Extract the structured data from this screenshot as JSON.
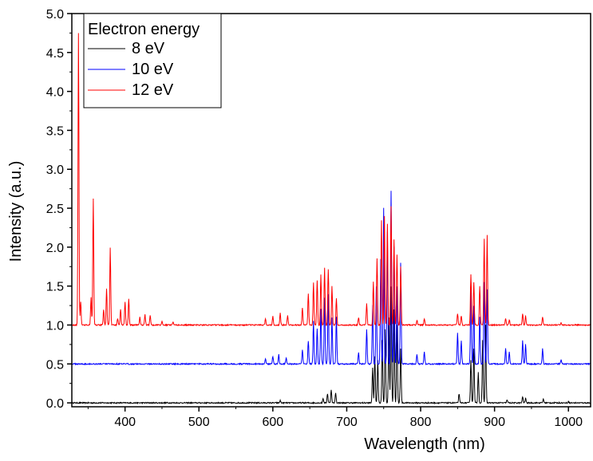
{
  "chart_data": {
    "type": "line",
    "title": "",
    "xlabel": "Wavelength (nm)",
    "ylabel": "Intensity (a.u.)",
    "xlim": [
      328,
      1030
    ],
    "ylim": [
      -0.05,
      5.0
    ],
    "x_ticks": [
      400,
      500,
      600,
      700,
      800,
      900,
      1000
    ],
    "x_tick_labels": [
      "400",
      "500",
      "600",
      "700",
      "800",
      "900",
      "1000"
    ],
    "y_ticks": [
      0.0,
      0.5,
      1.0,
      1.5,
      2.0,
      2.5,
      3.0,
      3.5,
      4.0,
      4.5,
      5.0
    ],
    "y_tick_labels": [
      "0.0",
      "0.5",
      "1.0",
      "1.5",
      "2.0",
      "2.5",
      "3.0",
      "3.5",
      "4.0",
      "4.5",
      "5.0"
    ],
    "grid": false,
    "legend": {
      "title": "Electron energy",
      "placement": "top-left"
    },
    "series": [
      {
        "name": "8 eV",
        "color": "#000000",
        "offset": 0.0,
        "peaks": [
          [
            610,
            0.03
          ],
          [
            668,
            0.06
          ],
          [
            674,
            0.12
          ],
          [
            679,
            0.17
          ],
          [
            685,
            0.13
          ],
          [
            735,
            0.45
          ],
          [
            738,
            0.6
          ],
          [
            742,
            0.55
          ],
          [
            748,
            0.8
          ],
          [
            752,
            0.95
          ],
          [
            757,
            1.1
          ],
          [
            760,
            1.5
          ],
          [
            764,
            1.2
          ],
          [
            768,
            1.0
          ],
          [
            773,
            0.7
          ],
          [
            852,
            0.12
          ],
          [
            868,
            0.55
          ],
          [
            872,
            0.7
          ],
          [
            878,
            0.4
          ],
          [
            884,
            0.8
          ],
          [
            888,
            1.0
          ],
          [
            917,
            0.04
          ],
          [
            938,
            0.08
          ],
          [
            942,
            0.06
          ],
          [
            966,
            0.05
          ],
          [
            1000,
            0.02
          ]
        ]
      },
      {
        "name": "10 eV",
        "color": "#0000ff",
        "offset": 0.5,
        "peaks": [
          [
            590,
            0.06
          ],
          [
            600,
            0.1
          ],
          [
            608,
            0.12
          ],
          [
            618,
            0.08
          ],
          [
            640,
            0.18
          ],
          [
            648,
            0.3
          ],
          [
            655,
            0.55
          ],
          [
            660,
            0.45
          ],
          [
            665,
            0.7
          ],
          [
            670,
            0.85
          ],
          [
            675,
            0.9
          ],
          [
            680,
            0.6
          ],
          [
            686,
            0.6
          ],
          [
            716,
            0.15
          ],
          [
            727,
            0.45
          ],
          [
            735,
            0.75
          ],
          [
            740,
            1.0
          ],
          [
            746,
            1.35
          ],
          [
            750,
            2.0
          ],
          [
            755,
            1.7
          ],
          [
            760,
            2.22
          ],
          [
            764,
            1.5
          ],
          [
            768,
            1.0
          ],
          [
            773,
            1.3
          ],
          [
            795,
            0.12
          ],
          [
            805,
            0.15
          ],
          [
            850,
            0.4
          ],
          [
            855,
            0.3
          ],
          [
            868,
            1.0
          ],
          [
            872,
            0.75
          ],
          [
            880,
            0.6
          ],
          [
            886,
            1.05
          ],
          [
            890,
            0.95
          ],
          [
            915,
            0.2
          ],
          [
            920,
            0.15
          ],
          [
            938,
            0.3
          ],
          [
            942,
            0.25
          ],
          [
            965,
            0.2
          ],
          [
            990,
            0.05
          ]
        ]
      },
      {
        "name": "12 eV",
        "color": "#ff0000",
        "offset": 1.0,
        "peaks": [
          [
            337,
            3.75
          ],
          [
            340,
            0.3
          ],
          [
            354,
            0.35
          ],
          [
            357,
            1.62
          ],
          [
            371,
            0.2
          ],
          [
            375,
            0.47
          ],
          [
            380,
            1.0
          ],
          [
            390,
            0.08
          ],
          [
            394,
            0.2
          ],
          [
            400,
            0.3
          ],
          [
            405,
            0.33
          ],
          [
            420,
            0.1
          ],
          [
            427,
            0.13
          ],
          [
            434,
            0.13
          ],
          [
            450,
            0.05
          ],
          [
            465,
            0.04
          ],
          [
            590,
            0.08
          ],
          [
            600,
            0.12
          ],
          [
            610,
            0.15
          ],
          [
            620,
            0.12
          ],
          [
            640,
            0.22
          ],
          [
            648,
            0.4
          ],
          [
            655,
            0.55
          ],
          [
            660,
            0.58
          ],
          [
            665,
            0.65
          ],
          [
            670,
            0.73
          ],
          [
            675,
            0.72
          ],
          [
            680,
            0.5
          ],
          [
            686,
            0.35
          ],
          [
            716,
            0.1
          ],
          [
            727,
            0.28
          ],
          [
            736,
            0.55
          ],
          [
            741,
            0.85
          ],
          [
            747,
            1.35
          ],
          [
            751,
            1.4
          ],
          [
            755,
            1.3
          ],
          [
            760,
            1.53
          ],
          [
            764,
            1.1
          ],
          [
            768,
            0.9
          ],
          [
            773,
            0.75
          ],
          [
            795,
            0.06
          ],
          [
            805,
            0.08
          ],
          [
            850,
            0.15
          ],
          [
            855,
            0.12
          ],
          [
            868,
            0.65
          ],
          [
            872,
            0.55
          ],
          [
            880,
            0.5
          ],
          [
            886,
            1.1
          ],
          [
            890,
            1.15
          ],
          [
            915,
            0.08
          ],
          [
            920,
            0.07
          ],
          [
            938,
            0.15
          ],
          [
            942,
            0.12
          ],
          [
            965,
            0.1
          ],
          [
            990,
            0.03
          ]
        ]
      }
    ]
  }
}
